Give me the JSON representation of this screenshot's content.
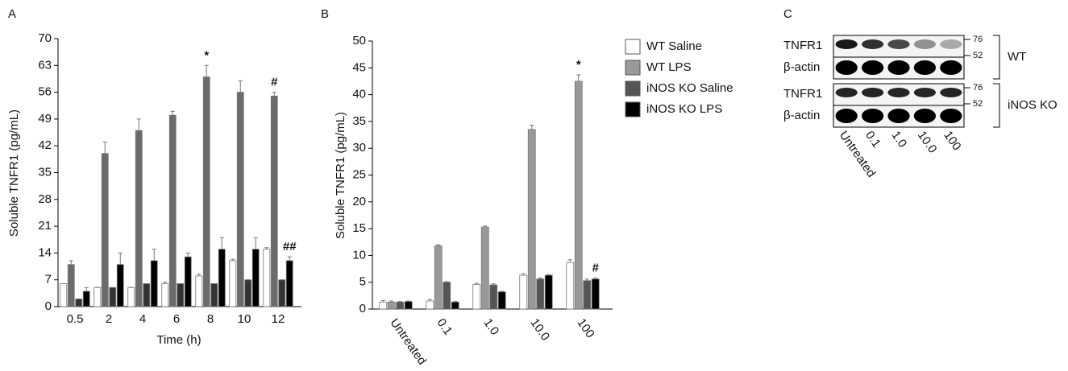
{
  "chart_data": [
    {
      "type": "bar",
      "panel": "A",
      "ylabel": "Soluble TNFR1 (pg/mL)",
      "xlabel": "Time (h)",
      "categories": [
        "0.5",
        "2",
        "4",
        "6",
        "8",
        "10",
        "12"
      ],
      "ylim": [
        0,
        70
      ],
      "yticks": [
        0,
        7,
        14,
        21,
        28,
        35,
        42,
        49,
        56,
        63,
        70
      ],
      "series": [
        {
          "color": "#ffffff",
          "values": [
            6,
            5,
            5,
            6,
            8,
            12,
            15
          ],
          "errors": [
            0,
            0,
            0,
            0.4,
            0.5,
            0.4,
            0.4
          ],
          "annotations": [
            null,
            null,
            null,
            null,
            null,
            null,
            null
          ]
        },
        {
          "color": "#6b6b6b",
          "values": [
            11,
            40,
            46,
            50,
            60,
            56,
            55
          ],
          "errors": [
            1,
            3,
            3,
            1,
            3,
            3,
            1
          ],
          "annotations": [
            null,
            null,
            null,
            null,
            "*",
            null,
            "#"
          ]
        },
        {
          "color": "#333333",
          "values": [
            2,
            5,
            6,
            6,
            6,
            7,
            7
          ],
          "errors": [
            0,
            0,
            0,
            0,
            0,
            0,
            0
          ],
          "annotations": [
            null,
            null,
            null,
            null,
            null,
            null,
            null
          ]
        },
        {
          "color": "#000000",
          "values": [
            4,
            11,
            12,
            13,
            15,
            15,
            12
          ],
          "errors": [
            1,
            3,
            3,
            1,
            3,
            3,
            1
          ],
          "annotations": [
            null,
            null,
            null,
            null,
            null,
            null,
            "##"
          ]
        }
      ]
    },
    {
      "type": "bar",
      "panel": "B",
      "ylabel": "Soluble TNFR1 (pg/mL)",
      "categories": [
        "Untreated",
        "0.1",
        "1.0",
        "10.0",
        "100"
      ],
      "ylim": [
        0,
        50
      ],
      "yticks": [
        0,
        5,
        10,
        15,
        20,
        25,
        30,
        35,
        40,
        45,
        50
      ],
      "legend": true,
      "series": [
        {
          "name": "WT Saline",
          "color": "#ffffff",
          "values": [
            1.3,
            1.5,
            4.6,
            6.3,
            8.7
          ],
          "errors": [
            0.3,
            0.3,
            0.2,
            0.3,
            0.5
          ],
          "annotations": [
            null,
            null,
            null,
            null,
            null
          ]
        },
        {
          "name": "WT LPS",
          "color": "#999999",
          "values": [
            1.3,
            11.8,
            15.3,
            33.5,
            42.5
          ],
          "errors": [
            0.2,
            0.2,
            0.2,
            0.8,
            1.2
          ],
          "annotations": [
            null,
            null,
            null,
            null,
            "*"
          ]
        },
        {
          "name": "iNOS KO Saline",
          "color": "#555555",
          "values": [
            1.3,
            5.0,
            4.5,
            5.6,
            5.3
          ],
          "errors": [
            0.1,
            0.1,
            0.2,
            0.2,
            0.3
          ],
          "annotations": [
            null,
            null,
            null,
            null,
            null
          ]
        },
        {
          "name": "iNOS KO LPS",
          "color": "#000000",
          "values": [
            1.4,
            1.3,
            3.2,
            6.3,
            5.6
          ],
          "errors": [
            0.1,
            0.1,
            0.1,
            0.1,
            0.2
          ],
          "annotations": [
            null,
            null,
            null,
            null,
            "#"
          ]
        }
      ]
    }
  ],
  "blot": {
    "panel": "C",
    "lanes": [
      "Untreated",
      "0.1",
      "1.0",
      "10.0",
      "100"
    ],
    "groups": [
      {
        "name": "WT",
        "rows": [
          "TNFR1",
          "β-actin"
        ],
        "markers": [
          "76",
          "52"
        ]
      },
      {
        "name": "iNOS KO",
        "rows": [
          "TNFR1",
          "β-actin"
        ],
        "markers": [
          "76",
          "52"
        ]
      }
    ]
  }
}
